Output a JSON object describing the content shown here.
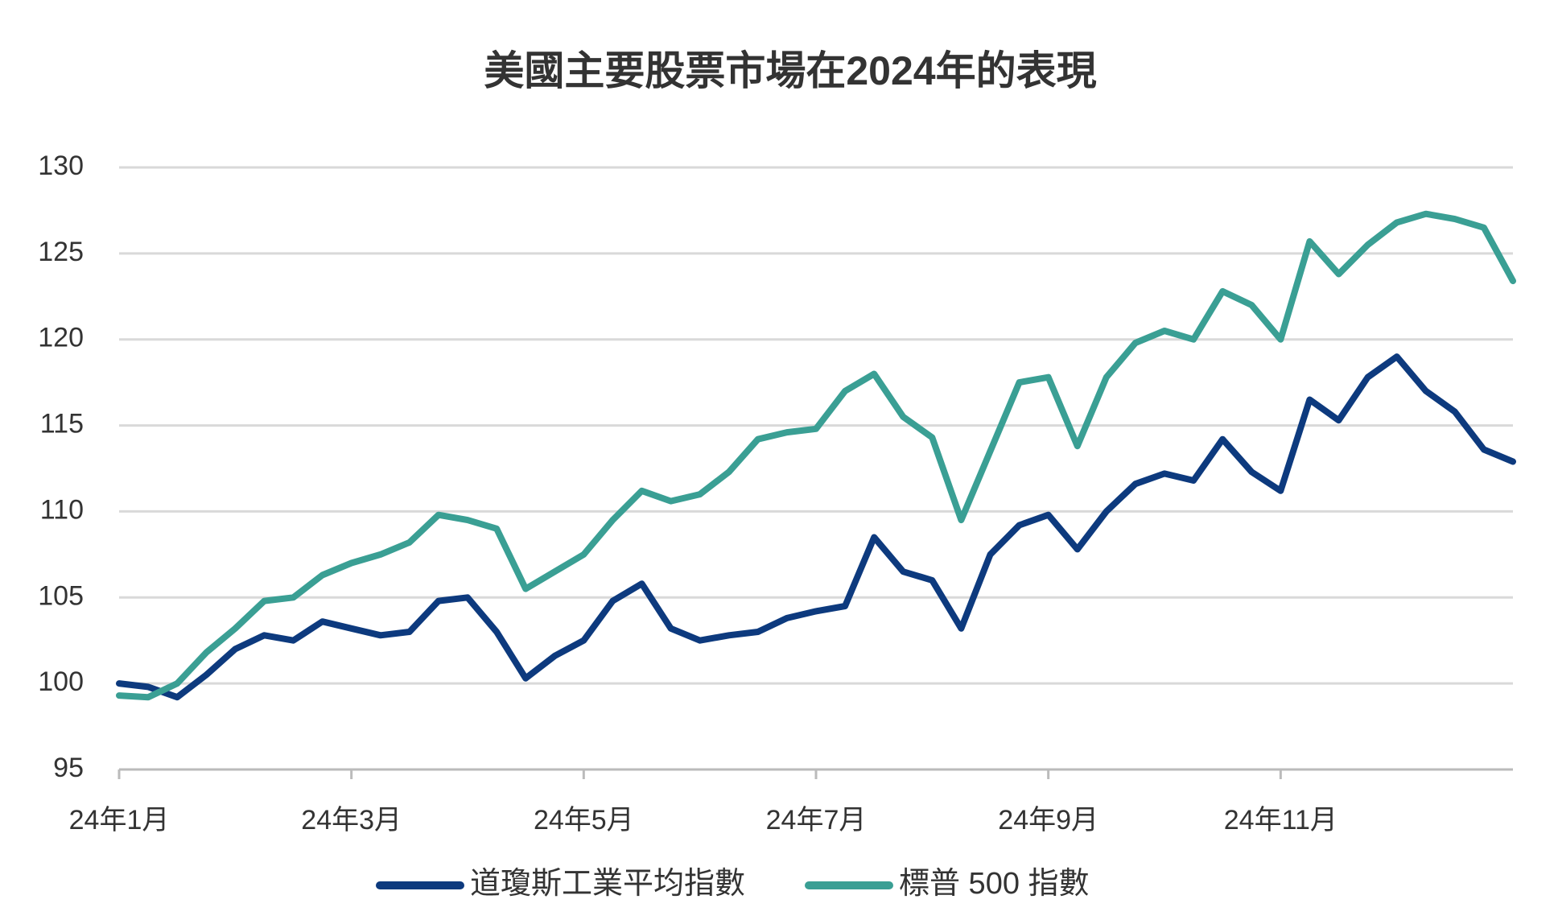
{
  "chart_data": {
    "type": "line",
    "title": "美國主要股票市場在2024年的表現",
    "categories": [
      "24年1月",
      null,
      null,
      null,
      null,
      null,
      null,
      null,
      "24年3月",
      null,
      null,
      null,
      null,
      null,
      null,
      null,
      "24年5月",
      null,
      null,
      null,
      null,
      null,
      null,
      null,
      "24年7月",
      null,
      null,
      null,
      null,
      null,
      null,
      null,
      "24年9月",
      null,
      null,
      null,
      null,
      null,
      null,
      null,
      "24年11月",
      null,
      null,
      null,
      null,
      null,
      null,
      null,
      null
    ],
    "series": [
      {
        "name": "道瓊斯工業平均指數",
        "color": "#0d3a7e",
        "values": [
          100.0,
          99.8,
          99.2,
          100.5,
          102.0,
          102.8,
          102.5,
          103.6,
          103.2,
          102.8,
          103.0,
          104.8,
          105.0,
          103.0,
          100.3,
          101.6,
          102.5,
          104.8,
          105.8,
          103.2,
          102.5,
          102.8,
          103.0,
          103.8,
          104.2,
          104.5,
          108.5,
          106.5,
          106.0,
          103.2,
          107.5,
          109.2,
          109.8,
          107.8,
          110.0,
          111.6,
          112.2,
          111.8,
          114.2,
          112.3,
          111.2,
          116.5,
          115.3,
          117.8,
          119.0,
          117.0,
          115.8,
          113.6,
          112.9
        ]
      },
      {
        "name": "標普 500 指數",
        "color": "#3a9f94",
        "values": [
          99.3,
          99.2,
          100.0,
          101.8,
          103.2,
          104.8,
          105.0,
          106.3,
          107.0,
          107.5,
          108.2,
          109.8,
          109.5,
          109.0,
          105.5,
          106.5,
          107.5,
          109.5,
          111.2,
          110.6,
          111.0,
          112.3,
          114.2,
          114.6,
          114.8,
          117.0,
          118.0,
          115.5,
          114.3,
          109.5,
          113.5,
          117.5,
          117.8,
          113.8,
          117.8,
          119.8,
          120.5,
          120.0,
          122.8,
          122.0,
          120.0,
          125.7,
          123.8,
          125.5,
          126.8,
          127.3,
          127.0,
          126.5,
          123.4
        ]
      }
    ],
    "ylim": [
      95,
      130
    ],
    "yticks": [
      95,
      100,
      105,
      110,
      115,
      120,
      125,
      130
    ],
    "grid": true,
    "legend": "bottom"
  }
}
